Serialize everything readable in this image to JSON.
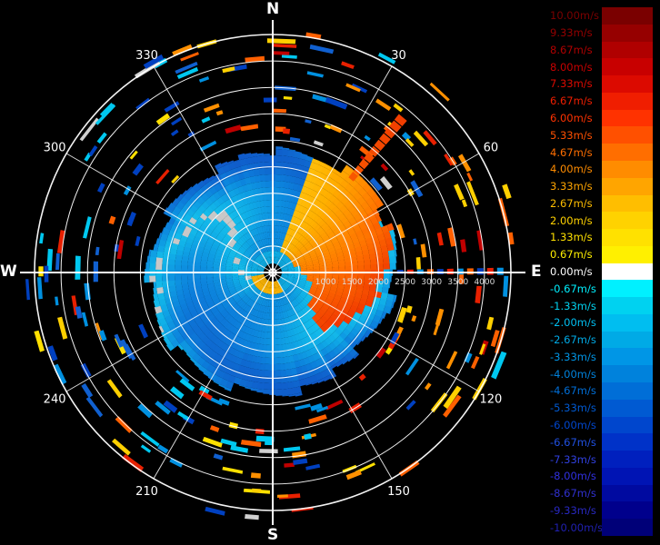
{
  "compass": {
    "north": "N",
    "south": "S",
    "east": "E",
    "west": "W"
  },
  "chart_data": {
    "type": "polar-radar",
    "azimuth_labels": [
      "30",
      "60",
      "120",
      "150",
      "210",
      "240",
      "300",
      "330"
    ],
    "range_labels": [
      "1000",
      "1500",
      "2000",
      "2500",
      "3000",
      "3500",
      "4000"
    ],
    "range_rings": [
      500,
      1000,
      1500,
      2000,
      2500,
      3000,
      3500,
      4000,
      4500
    ],
    "colorbar": {
      "labels": [
        "10.00m/s",
        "9.33m/s",
        "8.67m/s",
        "8.00m/s",
        "7.33m/s",
        "6.67m/s",
        "6.00m/s",
        "5.33m/s",
        "4.67m/s",
        "4.00m/s",
        "3.33m/s",
        "2.67m/s",
        "2.00m/s",
        "1.33m/s",
        "0.67m/s",
        "0.00m/s",
        "-0.67m/s",
        "-1.33m/s",
        "-2.00m/s",
        "-2.67m/s",
        "-3.33m/s",
        "-4.00m/s",
        "-4.67m/s",
        "-5.33m/s",
        "-6.00m/s",
        "-6.67m/s",
        "-7.33m/s",
        "-8.00m/s",
        "-8.67m/s",
        "-9.33m/s",
        "-10.00m/s"
      ],
      "colors": [
        "#7a0000",
        "#960000",
        "#b00000",
        "#c80000",
        "#dc0a00",
        "#f01e00",
        "#ff3200",
        "#ff5000",
        "#ff6e00",
        "#ff8c00",
        "#ffa500",
        "#ffbe00",
        "#ffd200",
        "#ffe100",
        "#fff000",
        "#ffffff",
        "#00f0ff",
        "#00d2f0",
        "#00bef0",
        "#00aae6",
        "#0096e6",
        "#0082dc",
        "#006ed7",
        "#005ad2",
        "#0046cd",
        "#0032c8",
        "#0020be",
        "#0014b4",
        "#000aa0",
        "#00008c",
        "#000078"
      ],
      "label_colors": [
        "#7a0000",
        "#960000",
        "#b00000",
        "#c80000",
        "#dc0a00",
        "#f01e00",
        "#ff3200",
        "#ff5000",
        "#ff6e00",
        "#ff8c00",
        "#ffa500",
        "#ffbe00",
        "#ffd200",
        "#ffe100",
        "#fff000",
        "#ffffff",
        "#00f0ff",
        "#00d2f0",
        "#00bef0",
        "#00aae6",
        "#0096e6",
        "#0082dc",
        "#006ed7",
        "#005ad2",
        "#0046cd",
        "#2050e0",
        "#3040e0",
        "#3030e0",
        "#3030d0",
        "#2828c0",
        "#2020b0"
      ]
    }
  }
}
